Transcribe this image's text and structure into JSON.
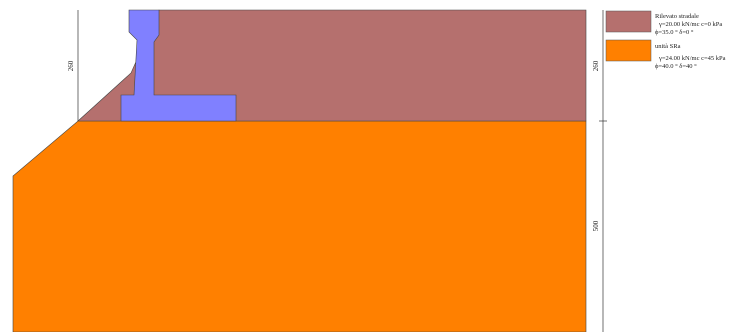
{
  "colors": {
    "embankment": "#b5706e",
    "soil": "#ff8000",
    "wall": "#8080ff",
    "outline": "#444444",
    "dimension_line": "#333333"
  },
  "dimensions": {
    "left_height_label": "260",
    "right_upper_label": "260",
    "right_lower_label": "500"
  },
  "legend": {
    "items": [
      {
        "key": "embankment",
        "title": "Rilevato stradale",
        "line1": "γ=20.00 kN/mc c=0 kPa",
        "line2": "ϕ=35.0 °  δ=0 °"
      },
      {
        "key": "soil",
        "title": "unità SRa",
        "line1": "γ=24.00 kN/mc c=45 kPa",
        "line2": "ϕ=40.0 °  δ=40 °"
      }
    ]
  }
}
